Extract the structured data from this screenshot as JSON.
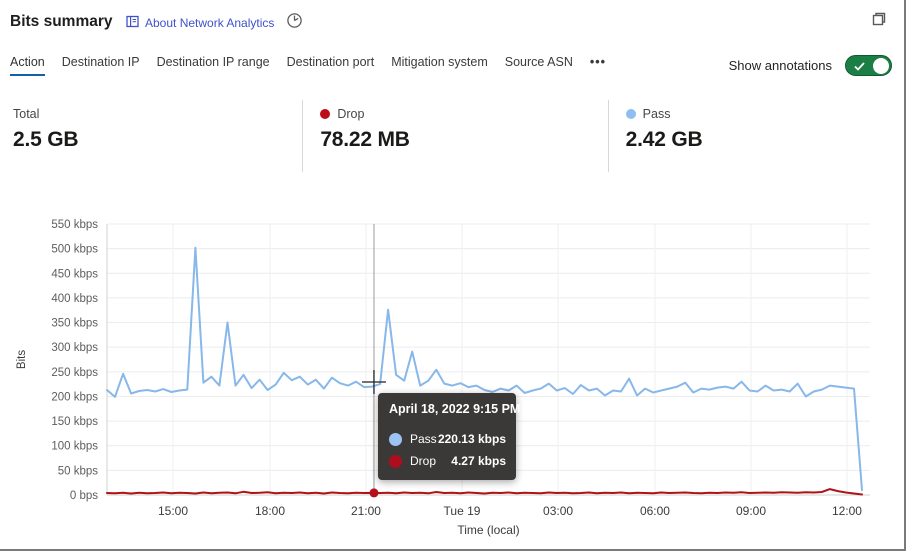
{
  "header": {
    "title": "Bits summary",
    "about_link": "About Network Analytics",
    "icons": {
      "about": "book-icon",
      "time_period": "clock-icon",
      "window": "restore-window-icon"
    }
  },
  "tabs": {
    "items": [
      {
        "label": "Action",
        "active": true
      },
      {
        "label": "Destination IP",
        "active": false
      },
      {
        "label": "Destination IP range",
        "active": false
      },
      {
        "label": "Destination port",
        "active": false
      },
      {
        "label": "Mitigation system",
        "active": false
      },
      {
        "label": "Source ASN",
        "active": false
      }
    ],
    "more_label": "•••",
    "active_underline_color": "#0e62ac"
  },
  "annotations_toggle": {
    "label": "Show annotations",
    "state": "on",
    "on_color": "#1b7f45"
  },
  "stats": [
    {
      "label": "Total",
      "value": "2.5 GB",
      "dot_color": null
    },
    {
      "label": "Drop",
      "value": "78.22 MB",
      "dot_color": "#bc0d18"
    },
    {
      "label": "Pass",
      "value": "2.42 GB",
      "dot_color": "#8fbdf0"
    }
  ],
  "chart_data": {
    "type": "line",
    "ylabel": "Bits",
    "xlabel": "Time (local)",
    "ylim": [
      0,
      550
    ],
    "unit": "kbps",
    "grid": true,
    "y_ticks": {
      "values": [
        550,
        500,
        450,
        400,
        350,
        300,
        250,
        200,
        150,
        100,
        50,
        0
      ],
      "labels": [
        "550 kbps",
        "500 kbps",
        "450 kbps",
        "400 kbps",
        "350 kbps",
        "300 kbps",
        "250 kbps",
        "200 kbps",
        "150 kbps",
        "100 kbps",
        "50 kbps",
        "0 bps"
      ]
    },
    "x_ticks": [
      {
        "label": "15:00",
        "f": 0.0874
      },
      {
        "label": "18:00",
        "f": 0.2159
      },
      {
        "label": "21:00",
        "f": 0.343
      },
      {
        "label": "Tue 19",
        "f": 0.4702
      },
      {
        "label": "03:00",
        "f": 0.5974
      },
      {
        "label": "06:00",
        "f": 0.7258
      },
      {
        "label": "09:00",
        "f": 0.853
      },
      {
        "label": "12:00",
        "f": 0.9801
      }
    ],
    "x_range": "April 18 ~13:00 to April 19 ~12:30, 15-minute intervals",
    "series": [
      {
        "name": "Pass",
        "color": "#88b7ea",
        "values": [
          213,
          199,
          246,
          206,
          211,
          213,
          210,
          215,
          209,
          212,
          214,
          502,
          228,
          240,
          222,
          350,
          222,
          244,
          217,
          234,
          213,
          224,
          248,
          233,
          240,
          224,
          234,
          216,
          238,
          227,
          222,
          230,
          219,
          220,
          225,
          376,
          244,
          232,
          291,
          222,
          232,
          254,
          226,
          222,
          227,
          219,
          222,
          213,
          209,
          216,
          212,
          222,
          207,
          212,
          216,
          226,
          212,
          217,
          205,
          223,
          212,
          216,
          202,
          212,
          210,
          236,
          202,
          216,
          208,
          212,
          216,
          220,
          228,
          208,
          216,
          214,
          218,
          220,
          216,
          230,
          212,
          210,
          222,
          212,
          214,
          210,
          226,
          200,
          210,
          214,
          222,
          220,
          218,
          216,
          10
        ]
      },
      {
        "name": "Drop",
        "color": "#b01317",
        "values": [
          4,
          3.5,
          4.5,
          3,
          4.5,
          3.5,
          4,
          5,
          3.5,
          4.5,
          4,
          3,
          5,
          3.5,
          4.5,
          5,
          3.5,
          6.5,
          4,
          4.5,
          5.5,
          3.5,
          4.5,
          4,
          5,
          3.5,
          4.5,
          3,
          5,
          4,
          3.5,
          4.5,
          4,
          4.3,
          4,
          4.5,
          3.5,
          5,
          4,
          4.5,
          3.5,
          6,
          4,
          4.5,
          3.5,
          5,
          4,
          3,
          4.5,
          4,
          5,
          3.5,
          4.5,
          4,
          3.5,
          5,
          4,
          4.5,
          3.5,
          4,
          5,
          3.5,
          4.5,
          4,
          5,
          3.5,
          4.5,
          4,
          3.5,
          5,
          4,
          4.5,
          5,
          4,
          3.5,
          4.5,
          4,
          5,
          4.5,
          5.5,
          4,
          4.5,
          5,
          4.5,
          5.5,
          5,
          4.5,
          5.5,
          5,
          6,
          12,
          8,
          5,
          3,
          1
        ]
      }
    ],
    "crosshair": {
      "f": 0.3536,
      "marker_series": "Drop",
      "marker_value": 4.27
    },
    "tooltip": {
      "title": "April 18, 2022 9:15 PM",
      "rows": [
        {
          "name": "Pass",
          "value": "220.13 kbps",
          "color": "#9cc3f3"
        },
        {
          "name": "Drop",
          "value": "4.27 kbps",
          "color": "#ad0d1c"
        }
      ]
    }
  }
}
